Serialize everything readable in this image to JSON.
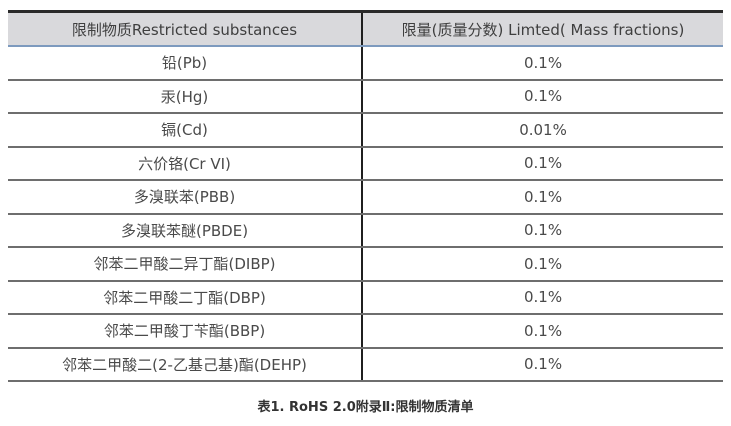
{
  "table": {
    "columns": [
      "限制物质Restricted substances",
      "限量(质量分数) Limted( Mass fractions)"
    ],
    "rows": [
      {
        "substance": "铅(Pb)",
        "limit": "0.1%"
      },
      {
        "substance": "汞(Hg)",
        "limit": "0.1%"
      },
      {
        "substance": "镉(Cd)",
        "limit": "0.01%"
      },
      {
        "substance": "六价铬(Cr VI)",
        "limit": "0.1%"
      },
      {
        "substance": "多溴联苯(PBB)",
        "limit": "0.1%"
      },
      {
        "substance": "多溴联苯醚(PBDE)",
        "limit": "0.1%"
      },
      {
        "substance": "邻苯二甲酸二异丁酯(DIBP)",
        "limit": "0.1%"
      },
      {
        "substance": "邻苯二甲酸二丁酯(DBP)",
        "limit": "0.1%"
      },
      {
        "substance": "邻苯二甲酸丁苄酯(BBP)",
        "limit": "0.1%"
      },
      {
        "substance": "邻苯二甲酸二(2-乙基己基)酯(DEHP)",
        "limit": "0.1%"
      }
    ],
    "caption": "表1. RoHS 2.0附录Ⅱ:限制物质清单"
  },
  "colors": {
    "header_background": "#d9d9dc",
    "header_top_border": "#2a2a2a",
    "header_bottom_border": "#7d9abe",
    "row_divider": "#6e6e6e",
    "column_divider": "#1f1f1f",
    "text": "#4a4a4a"
  }
}
